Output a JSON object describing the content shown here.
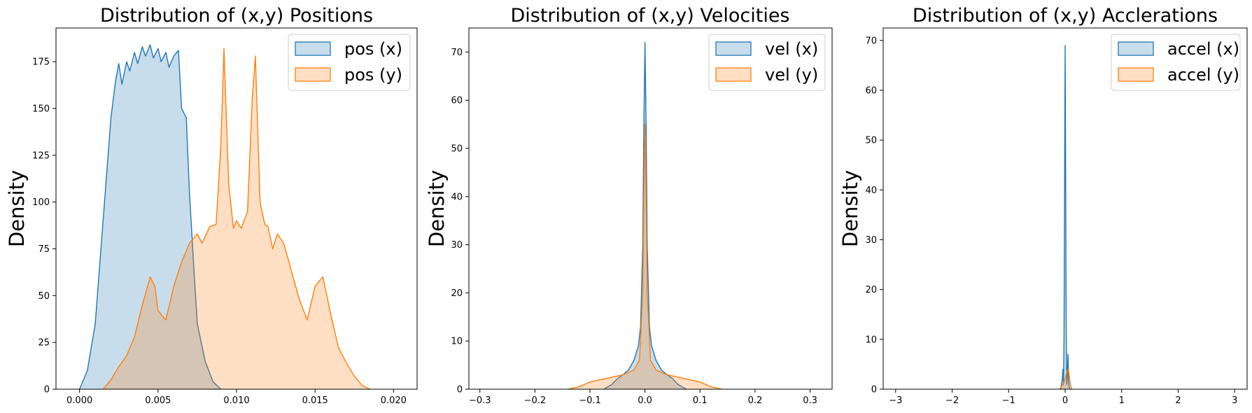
{
  "chart_data": [
    {
      "type": "area",
      "title": "Distribution of (x,y) Positions",
      "xlabel": "",
      "ylabel": "Density",
      "xlim": [
        -0.0015,
        0.0215
      ],
      "ylim": [
        0,
        193
      ],
      "xticks": [
        0.0,
        0.005,
        0.01,
        0.015,
        0.02
      ],
      "xtick_labels": [
        "0.000",
        "0.005",
        "0.010",
        "0.015",
        "0.020"
      ],
      "yticks": [
        0,
        25,
        50,
        75,
        100,
        125,
        150,
        175
      ],
      "ytick_labels": [
        "0",
        "25",
        "50",
        "75",
        "100",
        "125",
        "150",
        "175"
      ],
      "legend_position": "top-right",
      "series": [
        {
          "name": "pos (x)",
          "color": "#1f77b4",
          "x": [
            0.0,
            0.0005,
            0.001,
            0.0015,
            0.002,
            0.0023,
            0.0025,
            0.0027,
            0.003,
            0.0032,
            0.0035,
            0.0037,
            0.004,
            0.0042,
            0.0045,
            0.0047,
            0.005,
            0.0052,
            0.0055,
            0.0057,
            0.006,
            0.0063,
            0.0065,
            0.0068,
            0.007,
            0.0073,
            0.0075,
            0.008,
            0.0085,
            0.009
          ],
          "y": [
            0,
            10,
            35,
            90,
            145,
            165,
            174,
            163,
            175,
            170,
            180,
            174,
            183,
            178,
            184,
            177,
            182,
            175,
            180,
            172,
            178,
            181,
            150,
            145,
            105,
            62,
            35,
            15,
            4,
            0
          ]
        },
        {
          "name": "pos (y)",
          "color": "#ff7f0e",
          "x": [
            0.0015,
            0.002,
            0.0025,
            0.003,
            0.0035,
            0.004,
            0.0045,
            0.0048,
            0.005,
            0.0055,
            0.006,
            0.0065,
            0.007,
            0.0075,
            0.0078,
            0.0083,
            0.0087,
            0.009,
            0.0092,
            0.0095,
            0.0098,
            0.01,
            0.0103,
            0.0107,
            0.011,
            0.0112,
            0.0115,
            0.0118,
            0.012,
            0.0123,
            0.0126,
            0.013,
            0.0135,
            0.014,
            0.0145,
            0.015,
            0.0155,
            0.016,
            0.0165,
            0.017,
            0.0175,
            0.018,
            0.0185
          ],
          "y": [
            0,
            5,
            12,
            18,
            28,
            45,
            60,
            55,
            42,
            37,
            55,
            68,
            78,
            83,
            78,
            87,
            88,
            130,
            182,
            110,
            86,
            90,
            86,
            95,
            155,
            178,
            100,
            88,
            87,
            75,
            83,
            78,
            63,
            48,
            37,
            55,
            60,
            40,
            22,
            14,
            7,
            2,
            0
          ]
        }
      ]
    },
    {
      "type": "area",
      "title": "Distribution of (x,y) Velocities",
      "xlabel": "",
      "ylabel": "Density",
      "xlim": [
        -0.32,
        0.34
      ],
      "ylim": [
        0,
        75
      ],
      "xticks": [
        -0.3,
        -0.2,
        -0.1,
        0.0,
        0.1,
        0.2,
        0.3
      ],
      "xtick_labels": [
        "−0.3",
        "−0.2",
        "−0.1",
        "0.0",
        "0.1",
        "0.2",
        "0.3"
      ],
      "yticks": [
        0,
        10,
        20,
        30,
        40,
        50,
        60,
        70
      ],
      "ytick_labels": [
        "0",
        "10",
        "20",
        "30",
        "40",
        "50",
        "60",
        "70"
      ],
      "legend_position": "top-right",
      "series": [
        {
          "name": "vel (x)",
          "color": "#1f77b4",
          "x": [
            -0.075,
            -0.06,
            -0.05,
            -0.04,
            -0.03,
            -0.02,
            -0.012,
            -0.008,
            -0.004,
            -0.002,
            0.0,
            0.002,
            0.004,
            0.008,
            0.012,
            0.02,
            0.03,
            0.04,
            0.05,
            0.06,
            0.075
          ],
          "y": [
            0,
            1,
            2.2,
            3,
            4,
            6,
            9,
            13,
            30,
            55,
            72,
            55,
            30,
            13,
            9,
            6,
            4,
            3,
            2.2,
            1,
            0
          ]
        },
        {
          "name": "vel (y)",
          "color": "#ff7f0e",
          "x": [
            -0.14,
            -0.12,
            -0.1,
            -0.08,
            -0.06,
            -0.04,
            -0.02,
            -0.01,
            -0.004,
            -0.002,
            0.0,
            0.002,
            0.004,
            0.01,
            0.02,
            0.04,
            0.06,
            0.08,
            0.1,
            0.12,
            0.14
          ],
          "y": [
            0,
            0.5,
            1.5,
            2,
            2.5,
            3,
            4,
            6,
            20,
            40,
            55,
            40,
            20,
            6,
            4,
            3,
            2.5,
            2,
            1.5,
            0.5,
            0
          ]
        }
      ]
    },
    {
      "type": "area",
      "title": "Distribution of (x,y) Acclerations",
      "xlabel": "",
      "ylabel": "Density",
      "xlim": [
        -3.22,
        3.22
      ],
      "ylim": [
        0,
        72.5
      ],
      "xticks": [
        -3,
        -2,
        -1,
        0,
        1,
        2,
        3
      ],
      "xtick_labels": [
        "−3",
        "−2",
        "−1",
        "0",
        "1",
        "2",
        "3"
      ],
      "yticks": [
        0,
        10,
        20,
        30,
        40,
        50,
        60,
        70
      ],
      "ytick_labels": [
        "0",
        "10",
        "20",
        "30",
        "40",
        "50",
        "60",
        "70"
      ],
      "legend_position": "top-right",
      "series": [
        {
          "name": "accel (x)",
          "color": "#1f77b4",
          "x": [
            -0.08,
            -0.05,
            -0.04,
            -0.03,
            -0.02,
            -0.01,
            0.0,
            0.01,
            0.02,
            0.03,
            0.04,
            0.05,
            0.06,
            0.07,
            0.09
          ],
          "y": [
            0,
            2,
            4,
            1,
            10,
            40,
            69,
            40,
            10,
            1,
            3,
            7,
            2,
            0.5,
            0
          ]
        },
        {
          "name": "accel (y)",
          "color": "#ff7f0e",
          "x": [
            -0.1,
            -0.05,
            0.0,
            0.03,
            0.06,
            0.09,
            0.12
          ],
          "y": [
            0,
            0.8,
            2,
            3.5,
            4,
            1,
            0
          ]
        }
      ]
    }
  ]
}
